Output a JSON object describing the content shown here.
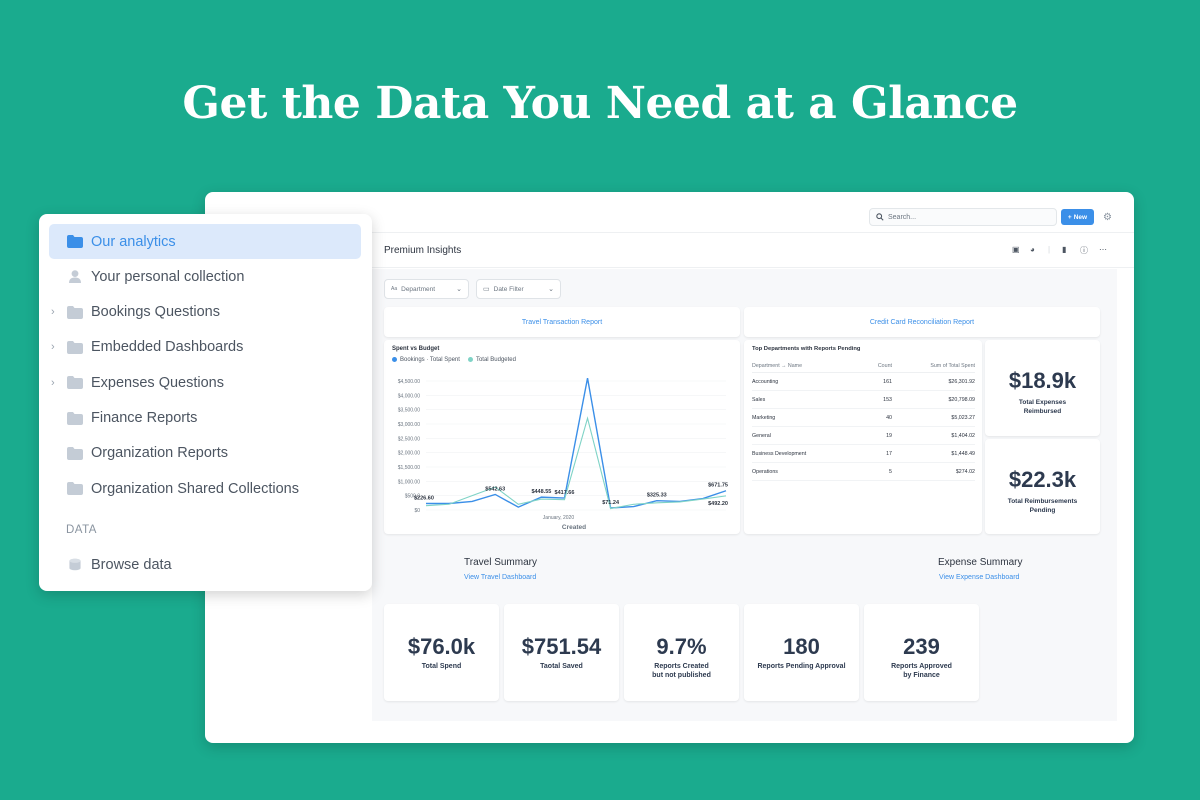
{
  "headline": "Get the Data You Need at a Glance",
  "topbar": {
    "search_placeholder": "Search...",
    "new_label": "New"
  },
  "dashboard": {
    "title": "Premium Insights",
    "filters": [
      {
        "icon": "Aa",
        "label": "Department"
      },
      {
        "label": "Date Filter"
      }
    ],
    "link_cards": [
      "Travel Transaction Report",
      "Credit Card Reconciliation Report"
    ],
    "chart": {
      "title": "Spent vs Budget",
      "legend": [
        "Bookings · Total Spent",
        "Total Budgeted"
      ],
      "xlabel": "Created",
      "xtick": "January, 2020",
      "yticks": [
        "$4,500.00",
        "$4,000.00",
        "$3,500.00",
        "$3,000.00",
        "$2,500.00",
        "$2,000.00",
        "$1,500.00",
        "$1,000.00",
        "$500.0",
        "$0"
      ],
      "point_labels": [
        "$226.60",
        "$542.63",
        "$448.55",
        "$417.66",
        "$71.24",
        "$325.33",
        "$671.75",
        "$492.20"
      ]
    },
    "table": {
      "title": "Top Departments with Reports Pending",
      "headers": [
        "Department → Name",
        "Count",
        "Sum of Total Spent"
      ],
      "rows": [
        [
          "Accounting",
          "161",
          "$26,301.92"
        ],
        [
          "Sales",
          "153",
          "$20,798.09"
        ],
        [
          "Marketing",
          "40",
          "$5,023.27"
        ],
        [
          "General",
          "19",
          "$1,404.02"
        ],
        [
          "Business Development",
          "17",
          "$1,448.49"
        ],
        [
          "Operations",
          "5",
          "$274.02"
        ]
      ]
    },
    "side_metrics": [
      {
        "value": "$18.9k",
        "label_1": "Total Expenses",
        "label_2": "Reimbursed"
      },
      {
        "value": "$22.3k",
        "label_1": "Total Reimbursements",
        "label_2": "Pending"
      }
    ],
    "sections": [
      {
        "title": "Travel Summary",
        "link": "View Travel Dashboard"
      },
      {
        "title": "Expense Summary",
        "link": "View Expense Dashboard"
      }
    ],
    "metrics": [
      {
        "value": "$76.0k",
        "label_1": "Total Spend",
        "label_2": ""
      },
      {
        "value": "$751.54",
        "label_1": "Taotal Saved",
        "label_2": ""
      },
      {
        "value": "9.7%",
        "label_1": "Reports Created",
        "label_2": "but not published"
      },
      {
        "value": "180",
        "label_1": "Reports Pending Approval",
        "label_2": ""
      },
      {
        "value": "239",
        "label_1": "Reports Approved",
        "label_2": "by Finance"
      }
    ]
  },
  "chart_data": {
    "type": "line",
    "title": "Spent vs Budget",
    "xlabel": "Created",
    "ylabel": "",
    "ylim": [
      0,
      4500
    ],
    "x": [
      1,
      2,
      3,
      4,
      5,
      6,
      7,
      8,
      9,
      10,
      11,
      12,
      13,
      14
    ],
    "series": [
      {
        "name": "Bookings · Total Spent",
        "color": "#3b8fe8",
        "values": [
          226.6,
          226.6,
          300,
          542.63,
          100,
          448.55,
          417.66,
          4600,
          71.24,
          120,
          325.33,
          300,
          400,
          671.75
        ]
      },
      {
        "name": "Total Budgeted",
        "color": "#7fd3c6",
        "values": [
          150,
          200,
          500,
          800,
          200,
          380,
          360,
          3200,
          50,
          200,
          250,
          280,
          380,
          492.2
        ]
      }
    ]
  },
  "sidebar": {
    "items": [
      {
        "label": "Our analytics",
        "icon": "folder-icon",
        "active": true,
        "expandable": false
      },
      {
        "label": "Your personal collection",
        "icon": "person-icon",
        "active": false,
        "expandable": false
      },
      {
        "label": "Bookings Questions",
        "icon": "folder-icon",
        "active": false,
        "expandable": true
      },
      {
        "label": "Embedded Dashboards",
        "icon": "folder-icon",
        "active": false,
        "expandable": true
      },
      {
        "label": "Expenses Questions",
        "icon": "folder-icon",
        "active": false,
        "expandable": true
      },
      {
        "label": "Finance Reports",
        "icon": "folder-icon",
        "active": false,
        "expandable": false
      },
      {
        "label": "Organization Reports",
        "icon": "folder-icon",
        "active": false,
        "expandable": false
      },
      {
        "label": "Organization Shared Collections",
        "icon": "folder-icon",
        "active": false,
        "expandable": false
      }
    ],
    "section_heading": "DATA",
    "browse_label": "Browse data"
  },
  "colors": {
    "background": "#1aab8e",
    "accent": "#3b8fe8",
    "active_bg": "#dce9fb",
    "text": "#2d3a4f"
  }
}
